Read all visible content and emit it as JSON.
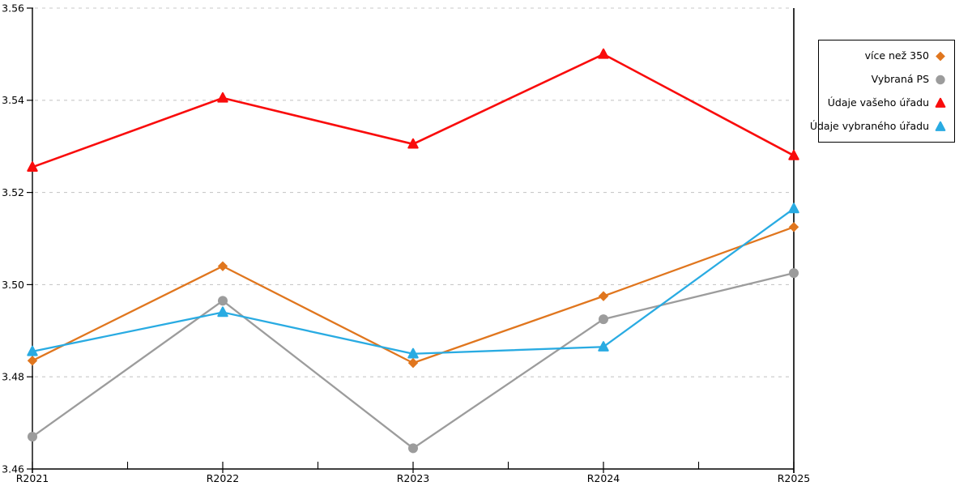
{
  "chart_data": {
    "type": "line",
    "title": "",
    "categories": [
      "R2021",
      "R2022",
      "R2023",
      "R2024",
      "R2025"
    ],
    "series": [
      {
        "name": "více než 350",
        "color": "#E0761E",
        "marker": "diamond",
        "values": [
          3.4835,
          3.504,
          3.483,
          3.4975,
          3.5125
        ]
      },
      {
        "name": "Vybraná PS",
        "color": "#9C9C9C",
        "marker": "circle",
        "values": [
          3.467,
          3.4965,
          3.4645,
          3.4925,
          3.5025
        ]
      },
      {
        "name": "Údaje vašeho úřadu",
        "color": "#F90C0C",
        "marker": "triangle",
        "values": [
          3.5255,
          3.5405,
          3.5305,
          3.55,
          3.528
        ]
      },
      {
        "name": "Údaje vybraného úřadu",
        "color": "#29ABE2",
        "marker": "triangle",
        "values": [
          3.4855,
          3.494,
          3.485,
          3.4865,
          3.5165
        ]
      }
    ],
    "y_axis": {
      "min": 3.46,
      "max": 3.56,
      "tick_labels": [
        "3.46",
        "3.48",
        "3.50",
        "3.52",
        "3.54",
        "3.56"
      ],
      "grid_style": "dashed"
    },
    "x_axis": {
      "labels": [
        "R2021",
        "R2022",
        "R2023",
        "R2024",
        "R2025"
      ],
      "minor_ticks_between_labels": true
    },
    "legend_position": "right",
    "colors": {
      "axis": "#000000",
      "grid": "#C9C9C9",
      "text": "#000000",
      "background": "#FFFFFF",
      "legend_border": "#000000"
    }
  }
}
